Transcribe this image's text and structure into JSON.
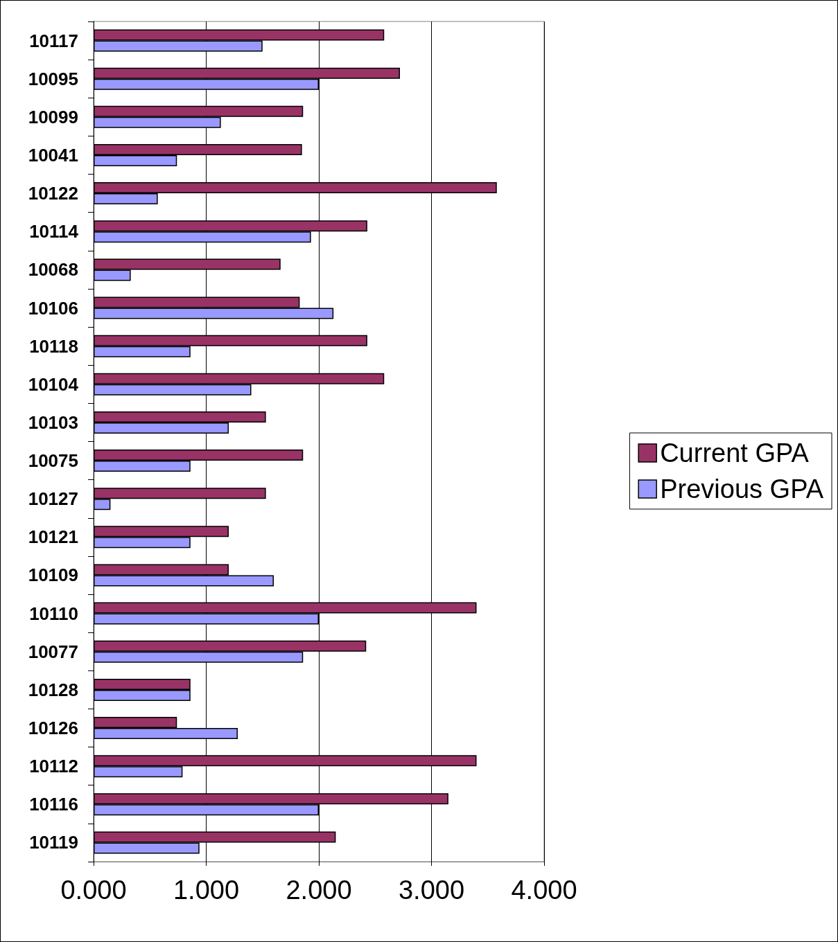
{
  "chart_data": {
    "type": "bar",
    "orientation": "horizontal",
    "categories": [
      "10117",
      "10095",
      "10099",
      "10041",
      "10122",
      "10114",
      "10068",
      "10106",
      "10118",
      "10104",
      "10103",
      "10075",
      "10127",
      "10121",
      "10109",
      "10110",
      "10077",
      "10128",
      "10126",
      "10112",
      "10116",
      "10119"
    ],
    "series": [
      {
        "name": "Current GPA",
        "color": "#993366",
        "values": [
          2.58,
          2.72,
          1.86,
          1.85,
          3.58,
          2.43,
          1.66,
          1.83,
          2.43,
          2.58,
          1.53,
          1.86,
          1.53,
          1.2,
          1.2,
          3.4,
          2.42,
          0.86,
          0.74,
          3.4,
          3.15,
          2.15
        ]
      },
      {
        "name": "Previous GPA",
        "color": "#9999ff",
        "values": [
          1.5,
          2.0,
          1.13,
          0.74,
          0.57,
          1.93,
          0.33,
          2.13,
          0.86,
          1.4,
          1.2,
          0.86,
          0.15,
          0.86,
          1.6,
          2.0,
          1.86,
          0.86,
          1.28,
          0.79,
          2.0,
          0.94
        ]
      }
    ],
    "xlim": [
      0,
      4
    ],
    "xticks": [
      {
        "value": 0,
        "label": "0.000"
      },
      {
        "value": 1,
        "label": "1.000"
      },
      {
        "value": 2,
        "label": "2.000"
      },
      {
        "value": 3,
        "label": "3.000"
      },
      {
        "value": 4,
        "label": "4.000"
      }
    ],
    "grid": "x",
    "legend": "right"
  }
}
